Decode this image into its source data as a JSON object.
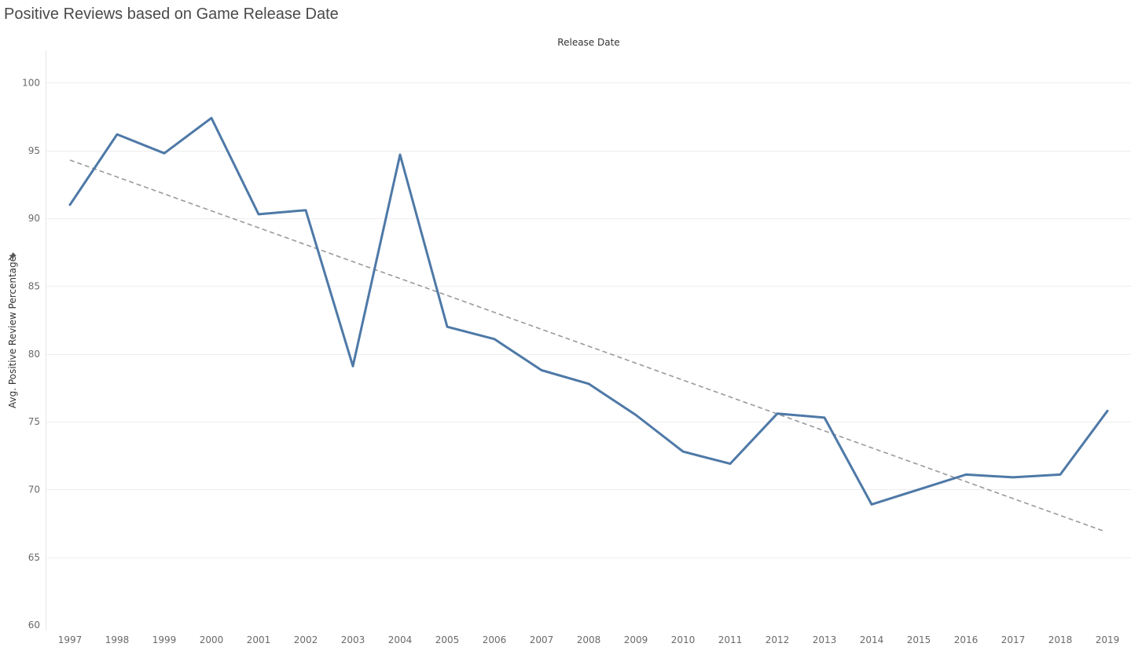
{
  "title": "Positive Reviews based on Game Release Date",
  "chart_data": {
    "type": "line",
    "title": "Positive Reviews based on Game Release Date",
    "xlabel": "Release Date",
    "ylabel": "Avg. Positive Review Percentage",
    "x": [
      "1997",
      "1998",
      "1999",
      "2000",
      "2001",
      "2002",
      "2003",
      "2004",
      "2005",
      "2006",
      "2007",
      "2008",
      "2009",
      "2010",
      "2011",
      "2012",
      "2013",
      "2014",
      "2015",
      "2016",
      "2017",
      "2018",
      "2019"
    ],
    "series": [
      {
        "values": [
          91.0,
          96.2,
          94.8,
          97.4,
          90.3,
          90.6,
          79.1,
          94.7,
          82.0,
          81.1,
          78.8,
          77.8,
          75.5,
          72.8,
          71.9,
          75.6,
          75.3,
          68.9,
          70.0,
          71.1,
          70.9,
          71.1,
          75.8
        ],
        "color": "#4e79a7"
      }
    ],
    "trendline": {
      "start": 94.3,
      "end": 66.9,
      "color": "#9a9a9a",
      "style": "dashed"
    },
    "yticks": [
      60,
      65,
      70,
      75,
      80,
      85,
      90,
      95,
      100
    ],
    "ylim": [
      59.6,
      102.4
    ],
    "grid": true,
    "legend": "none"
  }
}
